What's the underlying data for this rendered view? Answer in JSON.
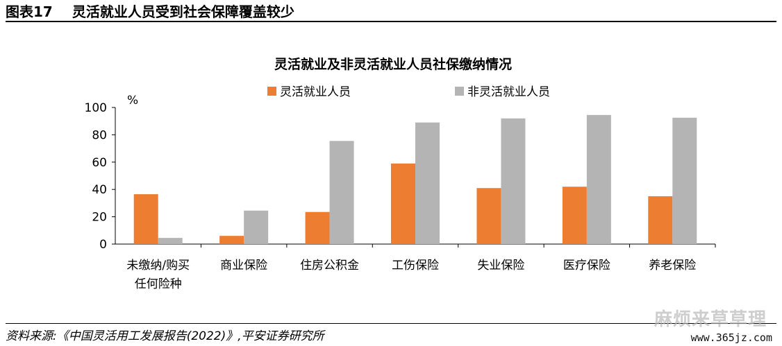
{
  "figure": {
    "label": "图表17",
    "title": "灵活就业人员受到社会保障覆盖较少"
  },
  "source_note": "资料来源:《中国灵活用工发展报告(2022)》,平安证券研究所",
  "watermark": {
    "text": "麻烦来草草理",
    "url": "www.365jz.com"
  },
  "chart_data": {
    "type": "bar",
    "title": "灵活就业及非灵活就业人员社保缴纳情况",
    "ylabel": "%",
    "ylim": [
      0,
      100
    ],
    "yticks": [
      0,
      20,
      40,
      60,
      80,
      100
    ],
    "categories": [
      [
        "未缴纳/购买",
        "任何险种"
      ],
      [
        "商业保险"
      ],
      [
        "住房公积金"
      ],
      [
        "工伤保险"
      ],
      [
        "失业保险"
      ],
      [
        "医疗保险"
      ],
      [
        "养老保险"
      ]
    ],
    "series": [
      {
        "name": "灵活就业人员",
        "color": "#ED7D31",
        "values": [
          36.5,
          6,
          23.5,
          59,
          41,
          42,
          35
        ]
      },
      {
        "name": "非灵活就业人员",
        "color": "#B4B4B4",
        "values": [
          4.5,
          24.5,
          75.5,
          89,
          92,
          94.5,
          92.5
        ]
      }
    ],
    "legend_position": "top",
    "grid": false
  }
}
